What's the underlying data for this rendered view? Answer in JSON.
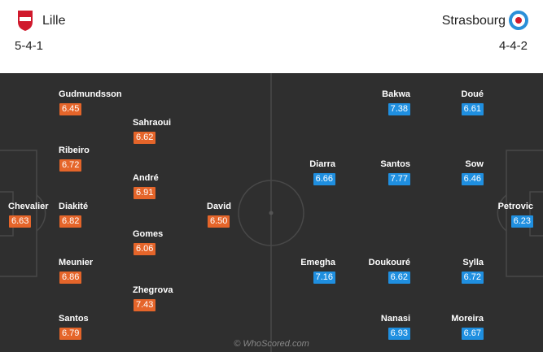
{
  "home": {
    "team": "Lille",
    "formation": "5-4-1",
    "players": [
      {
        "name": "Gudmundsson",
        "rating": "6.45"
      },
      {
        "name": "Sahraoui",
        "rating": "6.62"
      },
      {
        "name": "Ribeiro",
        "rating": "6.72"
      },
      {
        "name": "André",
        "rating": "6.91"
      },
      {
        "name": "Chevalier",
        "rating": "6.63"
      },
      {
        "name": "Diakité",
        "rating": "6.82"
      },
      {
        "name": "David",
        "rating": "6.50"
      },
      {
        "name": "Gomes",
        "rating": "6.06"
      },
      {
        "name": "Meunier",
        "rating": "6.86"
      },
      {
        "name": "Zhegrova",
        "rating": "7.43"
      },
      {
        "name": "Santos",
        "rating": "6.79"
      }
    ]
  },
  "away": {
    "team": "Strasbourg",
    "formation": "4-4-2",
    "players": [
      {
        "name": "Bakwa",
        "rating": "7.38"
      },
      {
        "name": "Doué",
        "rating": "6.61"
      },
      {
        "name": "Diarra",
        "rating": "6.66"
      },
      {
        "name": "Santos",
        "rating": "7.77"
      },
      {
        "name": "Sow",
        "rating": "6.46"
      },
      {
        "name": "Petrovic",
        "rating": "6.23"
      },
      {
        "name": "Emegha",
        "rating": "7.16"
      },
      {
        "name": "Doukouré",
        "rating": "6.62"
      },
      {
        "name": "Sylla",
        "rating": "6.72"
      },
      {
        "name": "Nanasi",
        "rating": "6.93"
      },
      {
        "name": "Moreira",
        "rating": "6.67"
      }
    ]
  },
  "watermark": "© WhoScored.com"
}
